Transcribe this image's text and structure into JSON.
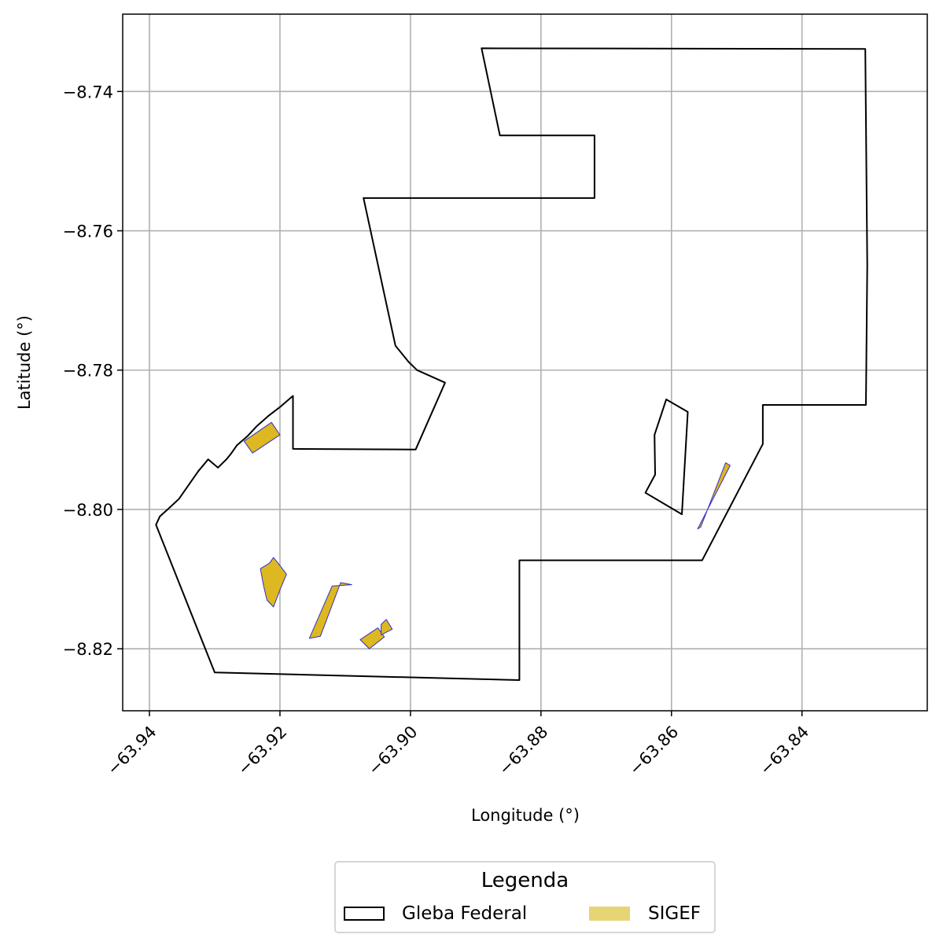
{
  "chart_data": {
    "type": "map",
    "xlabel": "Longitude (°)",
    "ylabel": "Latitude (°)",
    "xlim": [
      -63.9441,
      -63.8208
    ],
    "ylim": [
      -8.8289,
      -8.7289
    ],
    "grid": true,
    "x_ticks": [
      {
        "value": -63.94,
        "label": "−63.94"
      },
      {
        "value": -63.92,
        "label": "−63.92"
      },
      {
        "value": -63.9,
        "label": "−63.90"
      },
      {
        "value": -63.88,
        "label": "−63.88"
      },
      {
        "value": -63.86,
        "label": "−63.86"
      },
      {
        "value": -63.84,
        "label": "−63.84"
      }
    ],
    "y_ticks": [
      {
        "value": -8.74,
        "label": "−8.74"
      },
      {
        "value": -8.76,
        "label": "−8.76"
      },
      {
        "value": -8.78,
        "label": "−8.78"
      },
      {
        "value": -8.8,
        "label": "−8.80"
      },
      {
        "value": -8.82,
        "label": "−8.82"
      }
    ],
    "legend": {
      "title": "Legenda",
      "position": "below",
      "entries": [
        {
          "label": "Gleba Federal",
          "style": "outline",
          "color": "#000000"
        },
        {
          "label": "SIGEF",
          "style": "fill",
          "color": "#e6d475"
        }
      ]
    },
    "series": [
      {
        "name": "Gleba Federal",
        "type": "polygon",
        "stroke": "#000000",
        "fill": "none",
        "polygons": [
          [
            [
              -63.8891,
              -8.7338
            ],
            [
              -63.8303,
              -8.7339
            ],
            [
              -63.83,
              -8.765
            ],
            [
              -63.8302,
              -8.785
            ],
            [
              -63.846,
              -8.785
            ],
            [
              -63.846,
              -8.7906
            ],
            [
              -63.8553,
              -8.8073
            ],
            [
              -63.8833,
              -8.8073
            ],
            [
              -63.8833,
              -8.8245
            ],
            [
              -63.93,
              -8.8234
            ],
            [
              -63.939,
              -8.8022
            ],
            [
              -63.9384,
              -8.801
            ],
            [
              -63.9372,
              -8.8
            ],
            [
              -63.9355,
              -8.7985
            ],
            [
              -63.934,
              -8.7965
            ],
            [
              -63.9325,
              -8.7945
            ],
            [
              -63.931,
              -8.7928
            ],
            [
              -63.9295,
              -8.794
            ],
            [
              -63.9282,
              -8.7928
            ],
            [
              -63.9275,
              -8.792
            ],
            [
              -63.9266,
              -8.7908
            ],
            [
              -63.925,
              -8.7895
            ],
            [
              -63.9235,
              -8.788
            ],
            [
              -63.9218,
              -8.7866
            ],
            [
              -63.92,
              -8.7853
            ],
            [
              -63.918,
              -8.7837
            ],
            [
              -63.918,
              -8.7913
            ],
            [
              -63.8992,
              -8.7914
            ],
            [
              -63.8947,
              -8.7818
            ],
            [
              -63.899,
              -8.78
            ],
            [
              -63.9003,
              -8.7788
            ],
            [
              -63.9023,
              -8.7765
            ],
            [
              -63.9072,
              -8.7553
            ],
            [
              -63.8718,
              -8.7553
            ],
            [
              -63.8718,
              -8.7463
            ],
            [
              -63.8863,
              -8.7463
            ]
          ],
          [
            [
              -63.8608,
              -8.7842
            ],
            [
              -63.8575,
              -8.786
            ],
            [
              -63.8584,
              -8.8007
            ],
            [
              -63.864,
              -8.7976
            ],
            [
              -63.8625,
              -8.795
            ],
            [
              -63.8626,
              -8.7893
            ]
          ]
        ]
      },
      {
        "name": "SIGEF",
        "type": "polygon",
        "stroke": "#3030c8",
        "fill": "#ddb821",
        "polygons": [
          [
            [
              -63.9255,
              -8.7902
            ],
            [
              -63.9213,
              -8.7875
            ],
            [
              -63.92,
              -8.7893
            ],
            [
              -63.9242,
              -8.7919
            ]
          ],
          [
            [
              -63.923,
              -8.8085
            ],
            [
              -63.9216,
              -8.8077
            ],
            [
              -63.921,
              -8.8069
            ],
            [
              -63.9203,
              -8.8077
            ],
            [
              -63.919,
              -8.8093
            ],
            [
              -63.9199,
              -8.8113
            ],
            [
              -63.921,
              -8.814
            ],
            [
              -63.922,
              -8.813
            ],
            [
              -63.9225,
              -8.811
            ]
          ],
          [
            [
              -63.909,
              -8.8108
            ],
            [
              -63.9107,
              -8.8105
            ],
            [
              -63.9138,
              -8.8182
            ],
            [
              -63.9155,
              -8.8185
            ],
            [
              -63.912,
              -8.811
            ]
          ],
          [
            [
              -63.9077,
              -8.8187
            ],
            [
              -63.905,
              -8.817
            ],
            [
              -63.904,
              -8.8183
            ],
            [
              -63.9063,
              -8.82
            ]
          ],
          [
            [
              -63.9045,
              -8.8165
            ],
            [
              -63.9037,
              -8.8158
            ],
            [
              -63.9028,
              -8.8172
            ],
            [
              -63.9045,
              -8.818
            ]
          ],
          [
            [
              -63.8517,
              -8.7933
            ],
            [
              -63.851,
              -8.7937
            ],
            [
              -63.856,
              -8.8028
            ],
            [
              -63.8555,
              -8.8025
            ]
          ]
        ]
      }
    ]
  }
}
